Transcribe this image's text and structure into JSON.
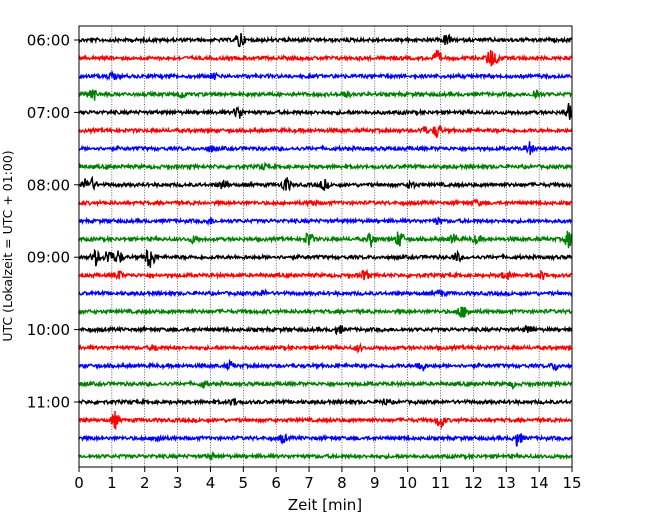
{
  "chart_data": {
    "type": "line",
    "chart_kind": "helicorder (seismogram drum plot)",
    "xlabel": "Zeit  [min]",
    "ylabel": "UTC (Lokalzeit = UTC + 01:00)",
    "xlim": [
      0,
      15
    ],
    "x_ticks": [
      "0",
      "1",
      "2",
      "3",
      "4",
      "5",
      "6",
      "7",
      "8",
      "9",
      "10",
      "11",
      "12",
      "13",
      "14",
      "15"
    ],
    "y_tick_labels": [
      "06:00",
      "07:00",
      "08:00",
      "09:00",
      "10:00",
      "11:00"
    ],
    "trace_start_times": [
      "06:00",
      "06:15",
      "06:30",
      "06:45",
      "07:00",
      "07:15",
      "07:30",
      "07:45",
      "08:00",
      "08:15",
      "08:30",
      "08:45",
      "09:00",
      "09:15",
      "09:30",
      "09:45",
      "10:00",
      "10:15",
      "10:30",
      "10:45",
      "11:00",
      "11:15",
      "11:30",
      "11:45"
    ],
    "trace_colors_cycle": [
      "#000000",
      "#ff0000",
      "#0000ff",
      "#008000"
    ],
    "minutes_per_line": 15,
    "grid": "vertical dotted lines at each minute",
    "series": [
      {
        "values": [
          [
            4.9,
            1.0
          ],
          [
            11.2,
            0.7
          ]
        ]
      },
      {
        "values": [
          [
            10.9,
            0.8
          ],
          [
            12.5,
            0.9
          ],
          [
            12.65,
            0.6
          ]
        ]
      },
      {
        "values": [
          [
            1.0,
            0.4
          ],
          [
            4.1,
            0.3
          ]
        ]
      },
      {
        "values": [
          [
            0.4,
            0.9
          ],
          [
            3.1,
            0.4
          ],
          [
            8.1,
            0.4
          ],
          [
            13.9,
            0.6
          ]
        ]
      },
      {
        "values": [
          [
            4.85,
            0.8
          ],
          [
            14.9,
            0.9
          ]
        ]
      },
      {
        "values": [
          [
            10.9,
            0.8
          ],
          [
            10.5,
            0.4
          ]
        ]
      },
      {
        "values": [
          [
            4.0,
            0.3
          ],
          [
            13.7,
            0.7
          ]
        ]
      },
      {
        "values": [
          [
            5.6,
            0.3
          ]
        ]
      },
      {
        "values": [
          [
            0.2,
            0.6
          ],
          [
            0.4,
            0.6
          ],
          [
            4.4,
            0.6
          ],
          [
            6.3,
            0.9
          ],
          [
            7.45,
            0.6
          ],
          [
            10.1,
            0.4
          ]
        ]
      },
      {
        "values": [
          [
            7.1,
            0.3
          ],
          [
            12.1,
            0.3
          ]
        ]
      },
      {
        "values": [
          [
            4.0,
            0.3
          ],
          [
            10.9,
            0.3
          ]
        ]
      },
      {
        "values": [
          [
            3.5,
            0.4
          ],
          [
            7.0,
            0.9
          ],
          [
            8.9,
            0.8
          ],
          [
            9.75,
            1.0
          ],
          [
            11.4,
            0.5
          ],
          [
            12.1,
            0.5
          ],
          [
            14.9,
            1.0
          ]
        ]
      },
      {
        "values": [
          [
            0.5,
            0.9
          ],
          [
            0.9,
            1.0
          ],
          [
            1.2,
            0.8
          ],
          [
            2.2,
            1.0
          ],
          [
            2.1,
            0.7
          ],
          [
            11.5,
            0.5
          ]
        ]
      },
      {
        "values": [
          [
            1.2,
            0.5
          ],
          [
            8.7,
            0.6
          ],
          [
            13.0,
            0.5
          ],
          [
            14.1,
            0.4
          ]
        ]
      },
      {
        "values": [
          [
            5.6,
            0.3
          ],
          [
            11.0,
            0.3
          ]
        ]
      },
      {
        "values": [
          [
            11.6,
            0.6
          ],
          [
            11.8,
            0.5
          ]
        ]
      },
      {
        "values": [
          [
            7.9,
            0.5
          ],
          [
            13.7,
            0.4
          ]
        ]
      },
      {
        "values": [
          [
            2.3,
            0.3
          ],
          [
            8.5,
            0.3
          ]
        ]
      },
      {
        "values": [
          [
            4.6,
            0.4
          ],
          [
            10.4,
            0.8
          ],
          [
            14.5,
            0.4
          ]
        ]
      },
      {
        "values": [
          [
            3.8,
            0.4
          ],
          [
            13.2,
            0.3
          ]
        ]
      },
      {
        "values": [
          [
            4.7,
            0.4
          ],
          [
            9.3,
            0.3
          ]
        ]
      },
      {
        "values": [
          [
            1.1,
            0.9
          ],
          [
            11.0,
            0.9
          ]
        ]
      },
      {
        "values": [
          [
            2.4,
            0.5
          ],
          [
            6.2,
            0.5
          ],
          [
            13.35,
            0.9
          ]
        ]
      },
      {
        "values": [
          [
            4.0,
            0.3
          ]
        ]
      }
    ]
  }
}
